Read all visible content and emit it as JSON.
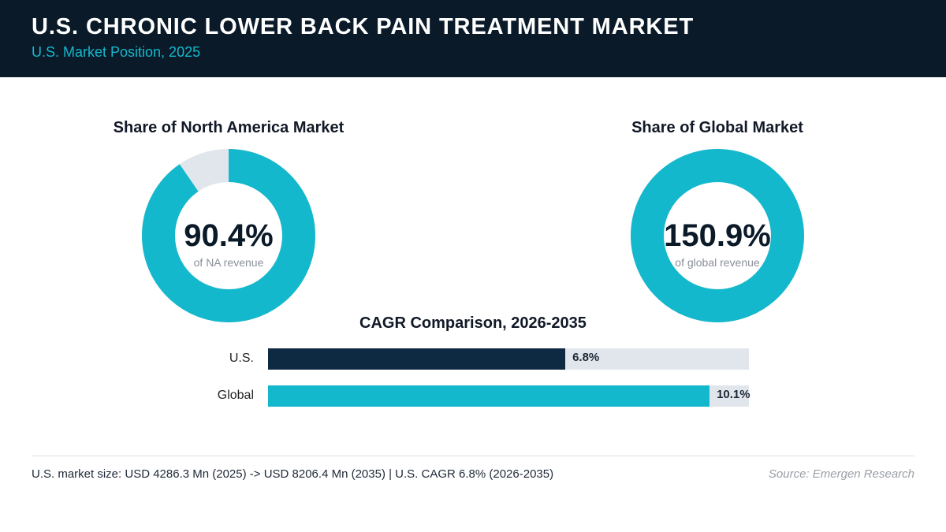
{
  "header": {
    "title": "U.S. CHRONIC LOWER BACK PAIN TREATMENT MARKET",
    "subtitle": "U.S. Market Position, 2025"
  },
  "chart_data": [
    {
      "type": "pie",
      "title": "Share of North America Market",
      "value": 90.4,
      "value_label": "90.4%",
      "caption": "of NA revenue",
      "fill_color": "#14b8cc",
      "track_color": "#e1e6ec"
    },
    {
      "type": "pie",
      "title": "Share of Global Market",
      "value": 150.9,
      "value_label": "150.9%",
      "caption": "of global revenue",
      "fill_color": "#14b8cc",
      "track_color": "#e1e6ec"
    },
    {
      "type": "bar",
      "orientation": "horizontal",
      "title": "CAGR Comparison, 2026-2035",
      "categories": [
        "U.S.",
        "Global"
      ],
      "values": [
        6.8,
        10.1
      ],
      "value_labels": [
        "6.8%",
        "10.1%"
      ],
      "colors": [
        "#0e2942",
        "#14b8cc"
      ],
      "track_color": "#e1e6ec",
      "xlim": [
        0,
        11
      ]
    }
  ],
  "footer": {
    "note": "U.S. market size: USD 4286.3 Mn (2025) -> USD 8206.4 Mn (2035)  |  U.S. CAGR 6.8% (2026-2035)",
    "source": "Source: Emergen Research"
  }
}
